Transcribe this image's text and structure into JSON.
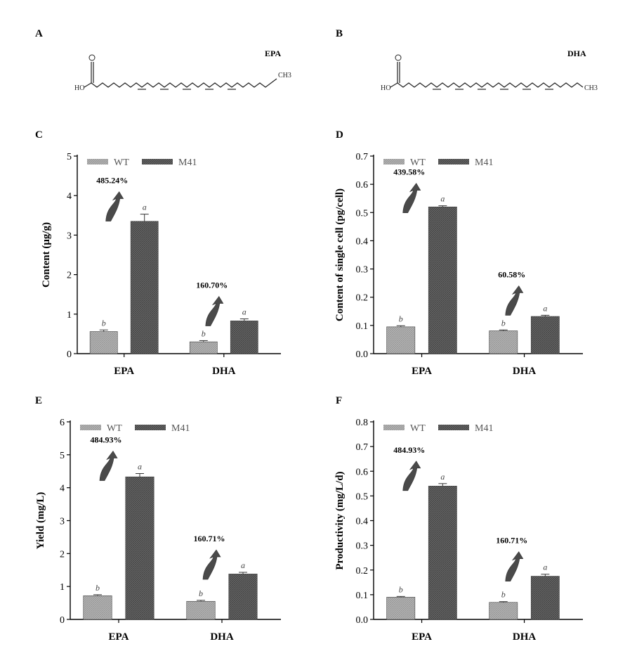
{
  "panels": {
    "A": {
      "letter": "A",
      "name": "EPA",
      "end_left": "HO",
      "end_right": "CH3"
    },
    "B": {
      "letter": "B",
      "name": "DHA",
      "end_left": "HO",
      "end_right": "CH3"
    }
  },
  "legend": [
    "WT",
    "M41"
  ],
  "colors": {
    "WT": "#a8a8a8",
    "M41": "#5a5a5a"
  },
  "chart_data": [
    {
      "panel": "C",
      "type": "bar",
      "categories": [
        "EPA",
        "DHA"
      ],
      "series": [
        {
          "name": "WT",
          "values": [
            0.56,
            0.3
          ],
          "errors": [
            0.04,
            0.03
          ]
        },
        {
          "name": "M41",
          "values": [
            3.35,
            0.83
          ],
          "errors": [
            0.18,
            0.05
          ]
        }
      ],
      "ylabel": "Content (μg/g)",
      "ylim": [
        0,
        5
      ],
      "yticks": [
        "0",
        "1",
        "2",
        "3",
        "4",
        "5"
      ],
      "increase_labels": [
        "485.24%",
        "160.70%"
      ],
      "significance": [
        [
          "b",
          "a"
        ],
        [
          "b",
          "a"
        ]
      ],
      "legend_position": "top-left"
    },
    {
      "panel": "D",
      "type": "bar",
      "categories": [
        "EPA",
        "DHA"
      ],
      "series": [
        {
          "name": "WT",
          "values": [
            0.095,
            0.081
          ],
          "errors": [
            0.004,
            0.003
          ]
        },
        {
          "name": "M41",
          "values": [
            0.52,
            0.132
          ],
          "errors": [
            0.004,
            0.004
          ]
        }
      ],
      "ylabel": "Content of single cell (pg/cell)",
      "ylim": [
        0,
        0.7
      ],
      "yticks": [
        "0.0",
        "0.1",
        "0.2",
        "0.3",
        "0.4",
        "0.5",
        "0.6",
        "0.7"
      ],
      "increase_labels": [
        "439.58%",
        "60.58%"
      ],
      "significance": [
        [
          "b",
          "a"
        ],
        [
          "b",
          "a"
        ]
      ],
      "legend_position": "top-left"
    },
    {
      "panel": "E",
      "type": "bar",
      "categories": [
        "EPA",
        "DHA"
      ],
      "series": [
        {
          "name": "WT",
          "values": [
            0.72,
            0.55
          ],
          "errors": [
            0.03,
            0.03
          ]
        },
        {
          "name": "M41",
          "values": [
            4.33,
            1.38
          ],
          "errors": [
            0.1,
            0.05
          ]
        }
      ],
      "ylabel": "Yield (mg/L)",
      "ylim": [
        0,
        6
      ],
      "yticks": [
        "0",
        "1",
        "2",
        "3",
        "4",
        "5",
        "6"
      ],
      "increase_labels": [
        "484.93%",
        "160.71%"
      ],
      "significance": [
        [
          "b",
          "a"
        ],
        [
          "b",
          "a"
        ]
      ],
      "legend_position": "top-left"
    },
    {
      "panel": "F",
      "type": "bar",
      "categories": [
        "EPA",
        "DHA"
      ],
      "series": [
        {
          "name": "WT",
          "values": [
            0.09,
            0.069
          ],
          "errors": [
            0.003,
            0.003
          ]
        },
        {
          "name": "M41",
          "values": [
            0.54,
            0.175
          ],
          "errors": [
            0.01,
            0.008
          ]
        }
      ],
      "ylabel": "Productivity (mg/L/d)",
      "ylim": [
        0,
        0.8
      ],
      "yticks": [
        "0.0",
        "0.1",
        "0.2",
        "0.3",
        "0.4",
        "0.5",
        "0.6",
        "0.7",
        "0.8"
      ],
      "increase_labels": [
        "484.93%",
        "160.71%"
      ],
      "significance": [
        [
          "b",
          "a"
        ],
        [
          "b",
          "a"
        ]
      ],
      "legend_position": "top-left"
    }
  ]
}
